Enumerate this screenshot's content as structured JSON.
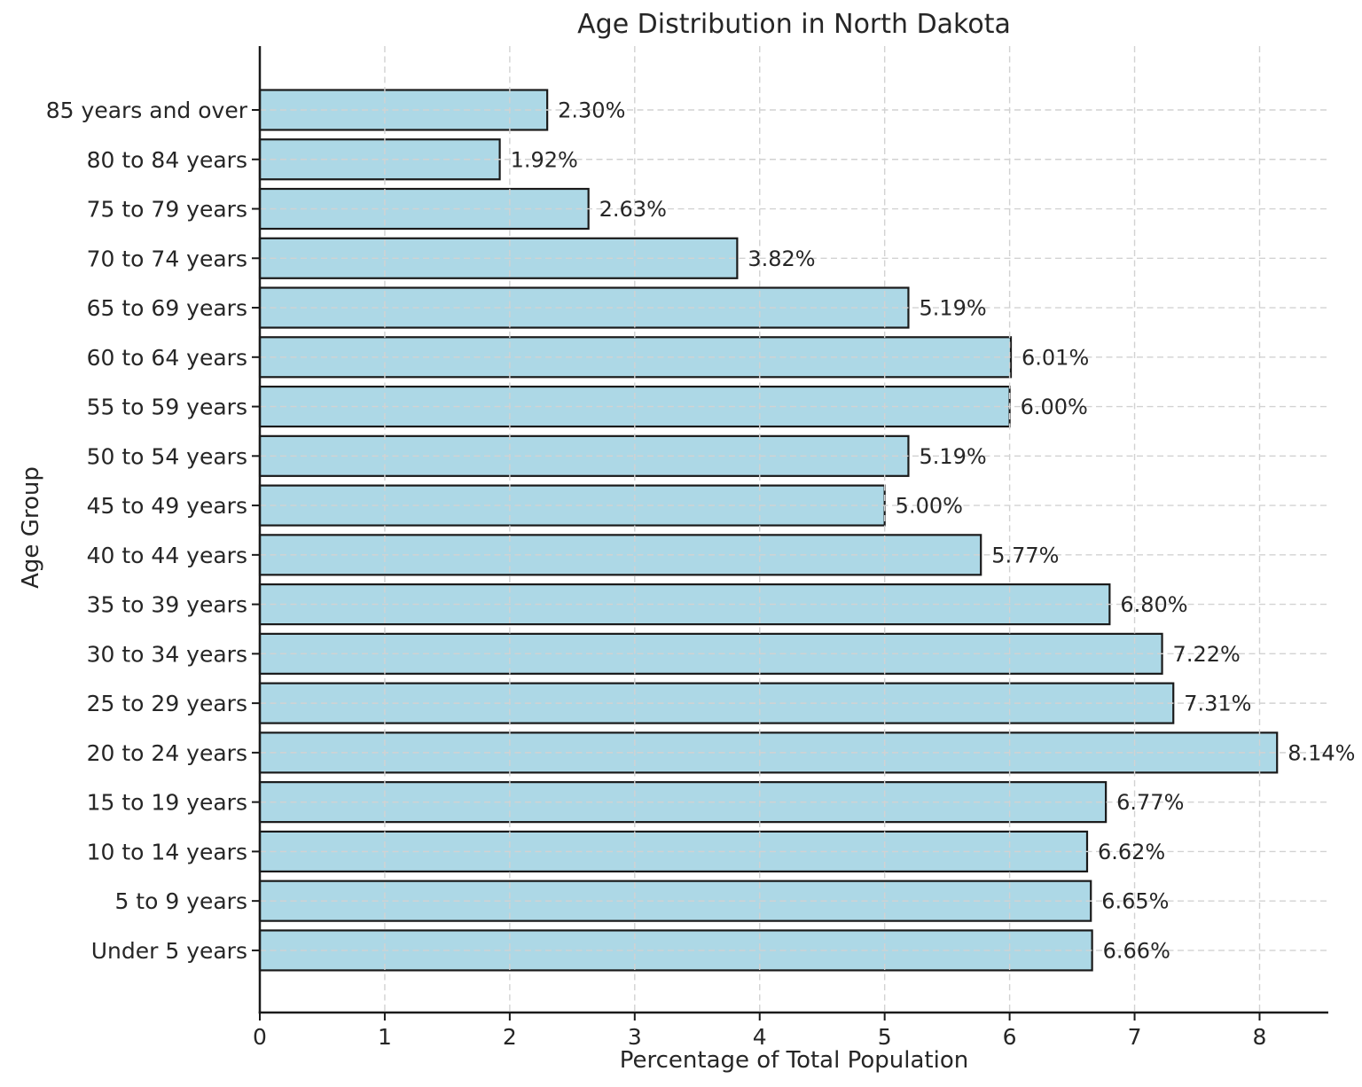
{
  "chart_data": {
    "type": "bar",
    "orientation": "horizontal",
    "title": "Age Distribution in North Dakota",
    "xlabel": "Percentage of Total Population",
    "ylabel": "Age Group",
    "categories": [
      "85 years and over",
      "80 to 84 years",
      "75 to 79 years",
      "70 to 74 years",
      "65 to 69 years",
      "60 to 64 years",
      "55 to 59 years",
      "50 to 54 years",
      "45 to 49 years",
      "40 to 44 years",
      "35 to 39 years",
      "30 to 34 years",
      "25 to 29 years",
      "20 to 24 years",
      "15 to 19 years",
      "10 to 14 years",
      "5 to 9 years",
      "Under 5 years"
    ],
    "values": [
      2.3,
      1.92,
      2.63,
      3.82,
      5.19,
      6.01,
      6.0,
      5.19,
      5.0,
      5.77,
      6.8,
      7.22,
      7.31,
      8.14,
      6.77,
      6.62,
      6.65,
      6.66
    ],
    "value_labels": [
      "2.30%",
      "1.92%",
      "2.63%",
      "3.82%",
      "5.19%",
      "6.01%",
      "6.00%",
      "5.19%",
      "5.00%",
      "5.77%",
      "6.80%",
      "7.22%",
      "7.31%",
      "8.14%",
      "6.77%",
      "6.62%",
      "6.65%",
      "6.66%"
    ],
    "x_ticks": [
      "0",
      "1",
      "2",
      "3",
      "4",
      "5",
      "6",
      "7",
      "8"
    ],
    "xlim": [
      0,
      8.55
    ],
    "grid": true,
    "grid_style": "dashed",
    "legend": null,
    "colors": {
      "bar_fill": "#ADD8E6",
      "bar_edge": "#1a1a1a",
      "grid": "#d2d2d2",
      "spine": "#1a1a1a",
      "text": "#262626",
      "background": "#ffffff"
    }
  }
}
